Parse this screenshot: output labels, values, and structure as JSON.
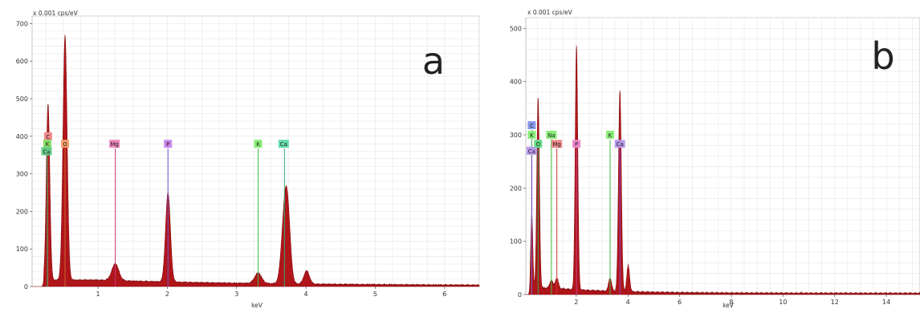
{
  "chart_data": [
    {
      "type": "area",
      "panel_label": "a",
      "unit_label": "x 0.001 cps/eV",
      "xlabel": "keV",
      "ylabel": "",
      "xlim": [
        0.05,
        6.5
      ],
      "ylim": [
        0,
        720
      ],
      "xticks": [
        1,
        2,
        3,
        4,
        5,
        6
      ],
      "yticks": [
        0,
        100,
        200,
        300,
        400,
        500,
        600,
        700
      ],
      "grid": true,
      "fill_color": "#b0151a",
      "baseline": 15,
      "peaks": [
        {
          "x": 0.28,
          "y": 470,
          "w": 0.025
        },
        {
          "x": 0.525,
          "y": 652,
          "w": 0.03
        },
        {
          "x": 1.25,
          "y": 45,
          "w": 0.05
        },
        {
          "x": 2.01,
          "y": 238,
          "w": 0.035
        },
        {
          "x": 3.31,
          "y": 28,
          "w": 0.05
        },
        {
          "x": 3.69,
          "y": 170,
          "w": 0.045
        },
        {
          "x": 3.74,
          "y": 140,
          "w": 0.04
        },
        {
          "x": 4.01,
          "y": 35,
          "w": 0.04
        }
      ],
      "element_markers": [
        {
          "label": "C",
          "x": 0.28,
          "y": 400,
          "label_color": "#f08a8a",
          "line_color": "#cc3333"
        },
        {
          "label": "K",
          "x": 0.27,
          "y": 380,
          "label_color": "#88dd66",
          "line_color": "#33aa33"
        },
        {
          "label": "Ca",
          "x": 0.27,
          "y": 360,
          "label_color": "#66cc88",
          "line_color": "#33aa66"
        },
        {
          "label": "O",
          "x": 0.525,
          "y": 380,
          "label_color": "#f5a070",
          "line_color": "#cc6633"
        },
        {
          "label": "Mg",
          "x": 1.25,
          "y": 380,
          "label_color": "#ee88bb",
          "line_color": "#cc3377"
        },
        {
          "label": "P",
          "x": 2.01,
          "y": 380,
          "label_color": "#cc88ee",
          "line_color": "#7755cc"
        },
        {
          "label": "K",
          "x": 3.31,
          "y": 380,
          "label_color": "#88ee77",
          "line_color": "#44bb44"
        },
        {
          "label": "Ca",
          "x": 3.69,
          "y": 380,
          "label_color": "#66ddaa",
          "line_color": "#33aa77"
        }
      ]
    },
    {
      "type": "area",
      "panel_label": "b",
      "unit_label": "x 0.001 cps/eV",
      "xlabel": "keV",
      "ylabel": "",
      "xlim": [
        0.05,
        15.3
      ],
      "ylim": [
        0,
        520
      ],
      "xticks": [
        2,
        4,
        6,
        8,
        10,
        12,
        14
      ],
      "yticks": [
        0,
        100,
        200,
        300,
        400,
        500
      ],
      "grid": true,
      "fill_color": "#b0151a",
      "baseline": 10,
      "peaks": [
        {
          "x": 0.28,
          "y": 140,
          "w": 0.04
        },
        {
          "x": 0.525,
          "y": 358,
          "w": 0.05
        },
        {
          "x": 1.04,
          "y": 15,
          "w": 0.06
        },
        {
          "x": 1.25,
          "y": 20,
          "w": 0.06
        },
        {
          "x": 2.01,
          "y": 460,
          "w": 0.05
        },
        {
          "x": 3.31,
          "y": 25,
          "w": 0.06
        },
        {
          "x": 3.69,
          "y": 378,
          "w": 0.055
        },
        {
          "x": 4.01,
          "y": 50,
          "w": 0.055
        }
      ],
      "element_markers": [
        {
          "label": "C",
          "x": 0.28,
          "y": 318,
          "label_color": "#8899ee",
          "line_color": "#6677dd"
        },
        {
          "label": "K",
          "x": 0.28,
          "y": 300,
          "label_color": "#88ee77",
          "line_color": "#44bb44"
        },
        {
          "label": "Ca",
          "x": 0.28,
          "y": 270,
          "label_color": "#bb99ee",
          "line_color": "#8844cc"
        },
        {
          "label": "O",
          "x": 0.525,
          "y": 283,
          "label_color": "#66dd88",
          "line_color": "#33aa55"
        },
        {
          "label": "Na",
          "x": 1.04,
          "y": 300,
          "label_color": "#88ee77",
          "line_color": "#44bb44"
        },
        {
          "label": "Mg",
          "x": 1.25,
          "y": 283,
          "label_color": "#f08a8a",
          "line_color": "#cc3333"
        },
        {
          "label": "P",
          "x": 2.01,
          "y": 283,
          "label_color": "#ee88cc",
          "line_color": "#cc4488"
        },
        {
          "label": "K",
          "x": 3.31,
          "y": 300,
          "label_color": "#88ee77",
          "line_color": "#44bb44"
        },
        {
          "label": "Ca",
          "x": 3.69,
          "y": 283,
          "label_color": "#bb99ee",
          "line_color": "#8844cc"
        }
      ]
    }
  ]
}
